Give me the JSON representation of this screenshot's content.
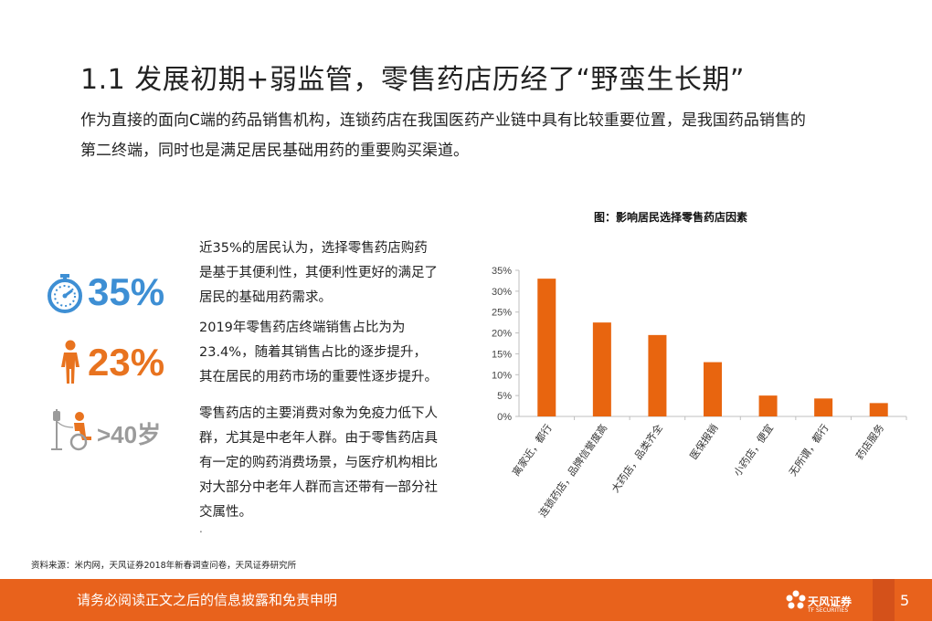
{
  "header": {
    "title": "1.1 发展初期+弱监管，零售药店历经了“野蛮生长期”",
    "intro": "作为直接的面向C端的药品销售机构，连锁药店在我国医药产业链中具有比较重要位置，是我国药品销售的第二终端，同时也是满足居民基础用药的重要购买渠道。"
  },
  "stats": [
    {
      "icon": "stopwatch-icon",
      "value": "35%",
      "color": "#3e8fd4",
      "text": "近35%的居民认为，选择零售药店购药是基于其便利性，其便利性更好的满足了居民的基础用药需求。"
    },
    {
      "icon": "person-icon",
      "value": "23%",
      "color": "#e8731f",
      "text": "2019年零售药店终端销售占比为为23.4%，随着其销售占比的逐步提升，其在居民的用药市场的重要性逐步提升。"
    },
    {
      "icon": "elderly-patient-icon",
      "value": ">40岁",
      "color": "#9b9b9b",
      "text": "零售药店的主要消费对象为免疫力低下人群，尤其是中老年人群。由于零售药店具有一定的购药消费场景，与医疗机构相比对大部分中老年人群而言还带有一部分社交属性。"
    }
  ],
  "dot": ".",
  "chart_data": {
    "type": "bar",
    "title": "图：影响居民选择零售药店因素",
    "categories": [
      "离家近，都行",
      "连锁药店，品牌信誉度高",
      "大药店，品类齐全",
      "医保报销",
      "小药店，便宜",
      "无所谓，都行",
      "药店服务"
    ],
    "values": [
      33.0,
      22.5,
      19.5,
      13.0,
      5.0,
      4.3,
      3.2
    ],
    "ylim": [
      0,
      35
    ],
    "yticks": [
      "0%",
      "5%",
      "10%",
      "15%",
      "20%",
      "25%",
      "30%",
      "35%"
    ],
    "xlabel": "",
    "ylabel": "",
    "bar_color": "#e8650f",
    "grid": false
  },
  "source": "资料来源：米内网，天风证券2018年新春调查问卷，天风证券研究所",
  "footer": {
    "disclaimer": "请务必阅读正文之后的信息披露和免责申明",
    "logo_name": "天风证券",
    "logo_sub": "TF SECURITIES",
    "page": "5",
    "color": "#e8621c"
  }
}
